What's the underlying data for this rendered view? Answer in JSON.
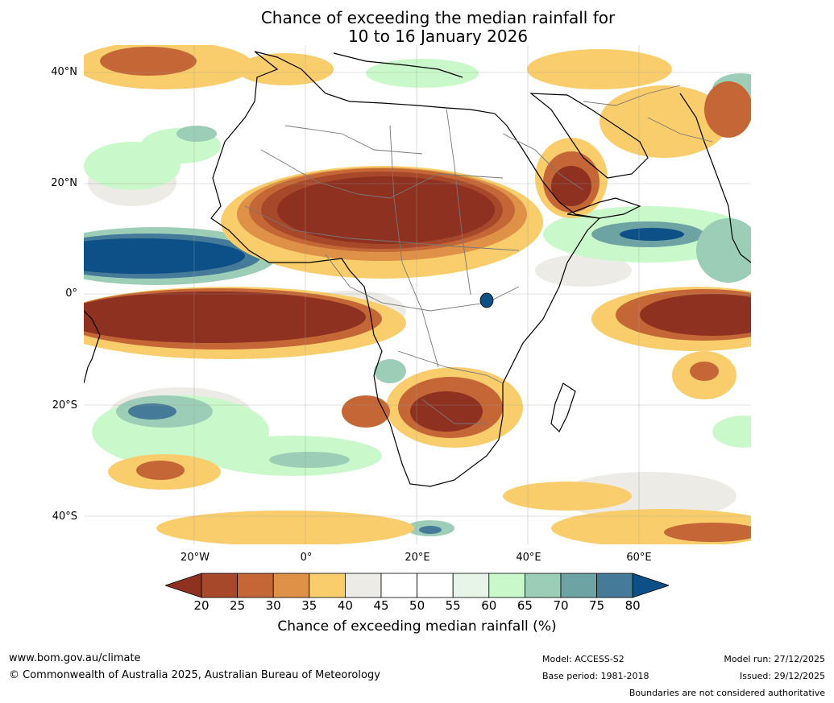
{
  "title": {
    "line1": "Chance of exceeding the median rainfall for",
    "line2": "10 to 16 January 2026"
  },
  "map": {
    "region": "Africa",
    "lat_labels": [
      "40°N",
      "20°N",
      "0°",
      "20°S",
      "40°S"
    ],
    "lon_labels": [
      "20°W",
      "0°",
      "20°E",
      "40°E",
      "60°E"
    ]
  },
  "colorbar": {
    "ticks": [
      "20",
      "25",
      "30",
      "35",
      "40",
      "45",
      "50",
      "55",
      "60",
      "65",
      "70",
      "75",
      "80"
    ],
    "colors": [
      "#8f3121",
      "#a8482b",
      "#c46636",
      "#de9147",
      "#f9cd6c",
      "#edebe5",
      "#ffffff",
      "#ffffff",
      "#e6f5e8",
      "#c9f9ca",
      "#9ccdb7",
      "#6ea3a4",
      "#457b98",
      "#0d4f87"
    ],
    "label": "Chance of exceeding median rainfall (%)"
  },
  "footer": {
    "url": "www.bom.gov.au/climate",
    "copyright": "© Commonwealth of Australia 2025, Australian Bureau of Meteorology",
    "model": "Model: ACCESS-S2",
    "base_period": "Base period: 1981-2018",
    "model_run": "Model run: 27/12/2025",
    "issued": "Issued: 29/12/2025",
    "disclaimer": "Boundaries are not considered authoritative"
  }
}
